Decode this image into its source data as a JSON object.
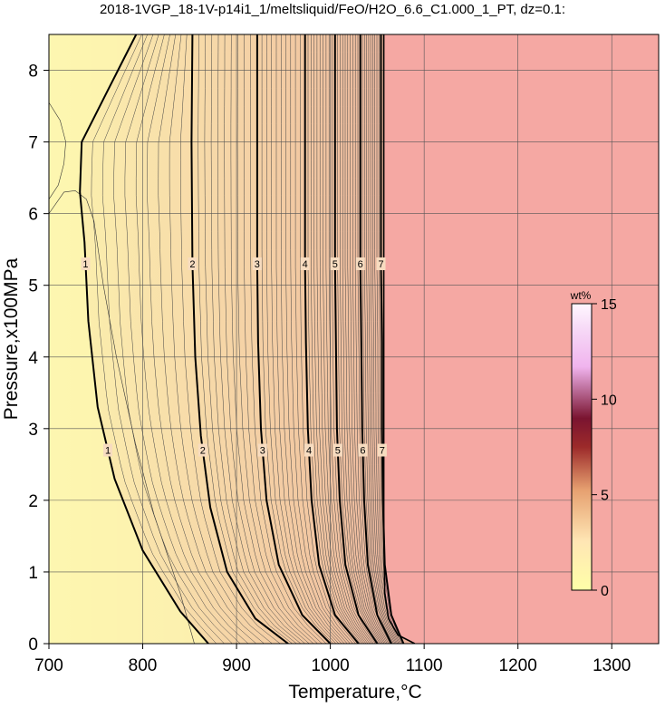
{
  "chart_data": {
    "type": "heatmap",
    "title": "2018-1VGP_18-1V-p14i1_1/meltsliquid/FeO/H2O_6.6_C1.000_1_PT, dz=0.1:",
    "xlabel": "Temperature,°C",
    "ylabel": "Pressure,x100MPa",
    "xlim": [
      700,
      1350
    ],
    "ylim": [
      0,
      8.5
    ],
    "x_ticks": [
      700,
      800,
      900,
      1000,
      1100,
      1200,
      1300
    ],
    "y_ticks": [
      0,
      1,
      2,
      3,
      4,
      5,
      6,
      7,
      8
    ],
    "grid": true,
    "no_melt_color": "#f5a8a3",
    "colorbar": {
      "label": "wt%",
      "min": 0,
      "max": 15,
      "ticks": [
        0,
        5,
        10,
        15
      ],
      "placement": "right",
      "colors": [
        "#ffffa8",
        "#ffe0b0",
        "#d46a3a",
        "#8a1020",
        "#f2b6f2",
        "#ffffff"
      ]
    },
    "solidus_line": [
      [
        1090,
        0
      ],
      [
        1072,
        0.12
      ],
      [
        1062,
        0.35
      ],
      [
        1058,
        0.7
      ],
      [
        1057,
        1.5
      ],
      [
        1057,
        3
      ],
      [
        1057,
        8.5
      ]
    ],
    "major_contours": [
      {
        "value": 1,
        "label": "1",
        "points": [
          [
            870,
            0
          ],
          [
            840,
            0.45
          ],
          [
            800,
            1.3
          ],
          [
            770,
            2.3
          ],
          [
            752,
            3.3
          ],
          [
            742,
            4.5
          ],
          [
            738,
            5.6
          ],
          [
            733,
            6.3
          ],
          [
            735,
            7.0
          ],
          [
            762,
            7.7
          ],
          [
            793,
            8.5
          ]
        ]
      },
      {
        "value": 2,
        "label": "2",
        "points": [
          [
            955,
            0
          ],
          [
            920,
            0.35
          ],
          [
            890,
            1.0
          ],
          [
            872,
            1.9
          ],
          [
            862,
            2.9
          ],
          [
            856,
            4.0
          ],
          [
            853,
            5.3
          ],
          [
            852,
            7.0
          ],
          [
            853,
            8.5
          ]
        ]
      },
      {
        "value": 3,
        "label": "3",
        "points": [
          [
            1000,
            0
          ],
          [
            970,
            0.4
          ],
          [
            945,
            1.1
          ],
          [
            932,
            2.0
          ],
          [
            926,
            3.0
          ],
          [
            923,
            4.2
          ],
          [
            922,
            5.3
          ],
          [
            922,
            7.0
          ],
          [
            922,
            8.5
          ]
        ]
      },
      {
        "value": 4,
        "label": "4",
        "points": [
          [
            1030,
            0
          ],
          [
            1005,
            0.4
          ],
          [
            988,
            1.1
          ],
          [
            980,
            2.0
          ],
          [
            976,
            3.0
          ],
          [
            974,
            4.2
          ],
          [
            973,
            5.3
          ],
          [
            973,
            8.5
          ]
        ]
      },
      {
        "value": 5,
        "label": "5",
        "points": [
          [
            1050,
            0
          ],
          [
            1030,
            0.4
          ],
          [
            1016,
            1.1
          ],
          [
            1010,
            2.0
          ],
          [
            1007,
            3.0
          ],
          [
            1006,
            4.2
          ],
          [
            1005,
            5.3
          ],
          [
            1005,
            8.5
          ]
        ]
      },
      {
        "value": 6,
        "label": "6",
        "points": [
          [
            1065,
            0
          ],
          [
            1050,
            0.4
          ],
          [
            1040,
            1.1
          ],
          [
            1036,
            2.0
          ],
          [
            1034,
            3.0
          ],
          [
            1033,
            4.2
          ],
          [
            1032,
            5.3
          ],
          [
            1032,
            8.5
          ]
        ]
      },
      {
        "value": 7,
        "label": "7",
        "points": [
          [
            1078,
            0
          ],
          [
            1065,
            0.4
          ],
          [
            1058,
            1.1
          ],
          [
            1056,
            2.0
          ],
          [
            1055,
            3.0
          ],
          [
            1055,
            4.2
          ],
          [
            1054,
            5.3
          ],
          [
            1054,
            8.5
          ]
        ]
      }
    ],
    "minor_contours": [
      {
        "value": 0.9,
        "points": [
          [
            700,
            7.55
          ],
          [
            712,
            7.3
          ],
          [
            718,
            7.0
          ],
          [
            716,
            6.7
          ],
          [
            710,
            6.4
          ],
          [
            700,
            6.2
          ]
        ]
      },
      {
        "value": 0.9,
        "points": [
          [
            700,
            6.0
          ],
          [
            716,
            6.3
          ],
          [
            728,
            6.32
          ],
          [
            740,
            6.2
          ],
          [
            748,
            5.9
          ],
          [
            758,
            5.0
          ],
          [
            772,
            4.0
          ],
          [
            792,
            2.8
          ],
          [
            812,
            1.8
          ],
          [
            840,
            0.7
          ],
          [
            855,
            0
          ]
        ]
      }
    ]
  }
}
